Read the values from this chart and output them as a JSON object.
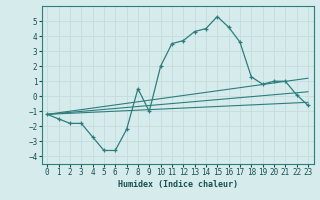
{
  "xlabel": "Humidex (Indice chaleur)",
  "bg_color": "#d6ecec",
  "grid_color": "#c4dcdc",
  "line_color": "#2e7d7d",
  "xlim": [
    -0.5,
    23.5
  ],
  "ylim": [
    -4.5,
    6.0
  ],
  "yticks": [
    -4,
    -3,
    -2,
    -1,
    0,
    1,
    2,
    3,
    4,
    5
  ],
  "xticks": [
    0,
    1,
    2,
    3,
    4,
    5,
    6,
    7,
    8,
    9,
    10,
    11,
    12,
    13,
    14,
    15,
    16,
    17,
    18,
    19,
    20,
    21,
    22,
    23
  ],
  "main_x": [
    0,
    1,
    2,
    3,
    4,
    5,
    6,
    7,
    8,
    9,
    10,
    11,
    12,
    13,
    14,
    15,
    16,
    17,
    18,
    19,
    20,
    21,
    22,
    23
  ],
  "main_y": [
    -1.2,
    -1.5,
    -1.8,
    -1.8,
    -2.7,
    -3.6,
    -3.6,
    -2.2,
    0.5,
    -1.0,
    2.0,
    3.5,
    3.7,
    4.3,
    4.5,
    5.3,
    4.6,
    3.6,
    1.3,
    0.8,
    1.0,
    1.0,
    0.1,
    -0.6
  ],
  "line2_x": [
    0,
    23
  ],
  "line2_y": [
    -1.2,
    1.2
  ],
  "line3_x": [
    0,
    23
  ],
  "line3_y": [
    -1.2,
    -0.4
  ],
  "line4_x": [
    0,
    23
  ],
  "line4_y": [
    -1.2,
    0.3
  ]
}
